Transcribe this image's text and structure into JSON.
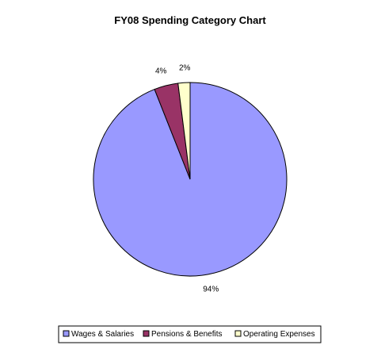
{
  "chart_data": {
    "type": "pie",
    "title": "FY08 Spending Category Chart",
    "categories": [
      "Wages & Salaries",
      "Pensions & Benefits",
      "Operating Expenses"
    ],
    "values": [
      94,
      4,
      2
    ],
    "data_labels": [
      "94%",
      "4%",
      "2%"
    ],
    "colors": [
      "#9999ff",
      "#993366",
      "#ffffcc"
    ],
    "legend_position": "bottom"
  }
}
